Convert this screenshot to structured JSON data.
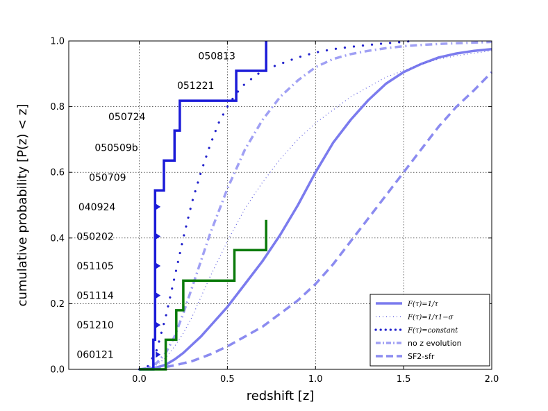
{
  "chart_data": {
    "type": "line",
    "xlabel": "redshift [z]",
    "ylabel": "cumulative probability [P(z) < z]",
    "xlim": [
      -0.4,
      2.0
    ],
    "ylim": [
      0.0,
      1.0
    ],
    "grid": true,
    "x_ticks": [
      0.0,
      0.5,
      1.0,
      1.5,
      2.0
    ],
    "x_tick_labels": [
      "0.0",
      "0.5",
      "1.0",
      "1.5",
      "2.0"
    ],
    "y_ticks": [
      0.0,
      0.2,
      0.4,
      0.6,
      0.8,
      1.0
    ],
    "y_tick_labels": [
      "0.0",
      "0.2",
      "0.4",
      "0.6",
      "0.8",
      "1.0"
    ],
    "legend_position": "bottom-right",
    "series": [
      {
        "name": "F(τ)=1/τ",
        "style": "solid",
        "color": "#7b7bee",
        "x": [
          0.0,
          0.05,
          0.1,
          0.15,
          0.2,
          0.25,
          0.3,
          0.35,
          0.4,
          0.5,
          0.6,
          0.7,
          0.8,
          0.9,
          1.0,
          1.1,
          1.2,
          1.3,
          1.4,
          1.5,
          1.6,
          1.7,
          1.8,
          1.9,
          2.0
        ],
        "y": [
          0.0,
          0.002,
          0.006,
          0.014,
          0.03,
          0.05,
          0.075,
          0.1,
          0.13,
          0.19,
          0.26,
          0.33,
          0.41,
          0.5,
          0.6,
          0.69,
          0.76,
          0.82,
          0.87,
          0.905,
          0.93,
          0.95,
          0.962,
          0.97,
          0.975
        ]
      },
      {
        "name": "F(τ)=1/τ1−σ",
        "style": "dotted",
        "color": "#5555dd",
        "x": [
          0.0,
          0.05,
          0.1,
          0.15,
          0.2,
          0.25,
          0.3,
          0.35,
          0.4,
          0.5,
          0.6,
          0.7,
          0.8,
          0.9,
          1.0,
          1.1,
          1.2,
          1.3,
          1.4,
          1.5,
          1.6,
          1.7,
          1.8,
          1.9,
          2.0
        ],
        "y": [
          0.0,
          0.004,
          0.014,
          0.035,
          0.07,
          0.11,
          0.16,
          0.22,
          0.28,
          0.39,
          0.49,
          0.57,
          0.64,
          0.7,
          0.75,
          0.79,
          0.83,
          0.86,
          0.89,
          0.91,
          0.93,
          0.945,
          0.955,
          0.963,
          0.97
        ]
      },
      {
        "name": "F(τ)=constant",
        "style": "dotted-bold",
        "color": "#2222cc",
        "x": [
          0.0,
          0.05,
          0.1,
          0.15,
          0.2,
          0.25,
          0.3,
          0.35,
          0.4,
          0.45,
          0.5,
          0.55,
          0.6,
          0.7,
          0.8,
          0.9,
          1.0,
          1.1,
          1.2,
          1.3,
          1.4,
          1.5,
          1.55
        ],
        "y": [
          0.0,
          0.01,
          0.06,
          0.16,
          0.28,
          0.4,
          0.51,
          0.6,
          0.68,
          0.75,
          0.8,
          0.84,
          0.87,
          0.91,
          0.93,
          0.95,
          0.965,
          0.975,
          0.982,
          0.988,
          0.993,
          0.997,
          1.0
        ]
      },
      {
        "name": "no z evolution",
        "style": "dashdot",
        "color": "#a0a0f4",
        "x": [
          0.0,
          0.05,
          0.1,
          0.15,
          0.2,
          0.25,
          0.3,
          0.35,
          0.4,
          0.5,
          0.6,
          0.7,
          0.8,
          0.9,
          1.0,
          1.1,
          1.2,
          1.3,
          1.4,
          1.5,
          1.6,
          1.7,
          1.8,
          1.9,
          2.0
        ],
        "y": [
          0.0,
          0.004,
          0.02,
          0.05,
          0.1,
          0.17,
          0.25,
          0.33,
          0.41,
          0.55,
          0.67,
          0.76,
          0.83,
          0.88,
          0.92,
          0.945,
          0.96,
          0.97,
          0.978,
          0.984,
          0.988,
          0.991,
          0.993,
          0.995,
          0.997
        ]
      },
      {
        "name": "SF2-sfr",
        "style": "dashed",
        "color": "#8b8bf0",
        "x": [
          0.0,
          0.1,
          0.2,
          0.3,
          0.4,
          0.5,
          0.6,
          0.7,
          0.8,
          0.9,
          1.0,
          1.1,
          1.2,
          1.3,
          1.4,
          1.5,
          1.6,
          1.7,
          1.8,
          1.9,
          2.0
        ],
        "y": [
          0.0,
          0.003,
          0.012,
          0.025,
          0.045,
          0.07,
          0.1,
          0.13,
          0.17,
          0.21,
          0.26,
          0.32,
          0.39,
          0.46,
          0.53,
          0.6,
          0.67,
          0.74,
          0.8,
          0.85,
          0.905
        ]
      }
    ],
    "step_series": [
      {
        "name": "blue-step",
        "color": "#1b1bd8",
        "x": [
          0.0,
          0.08,
          0.08,
          0.09,
          0.09,
          0.14,
          0.14,
          0.2,
          0.2,
          0.23,
          0.23,
          0.26,
          0.26,
          0.55,
          0.55,
          0.72,
          0.72
        ],
        "y": [
          0.0,
          0.0,
          0.09,
          0.09,
          0.545,
          0.545,
          0.636,
          0.636,
          0.727,
          0.727,
          0.818,
          0.818,
          0.818,
          0.818,
          0.909,
          0.909,
          1.0
        ]
      },
      {
        "name": "green-step",
        "color": "#0a7a0a",
        "x": [
          0.0,
          0.15,
          0.15,
          0.21,
          0.21,
          0.23,
          0.23,
          0.25,
          0.25,
          0.54,
          0.54,
          0.72,
          0.72
        ],
        "y": [
          0.0,
          0.0,
          0.09,
          0.09,
          0.18,
          0.18,
          0.18,
          0.18,
          0.27,
          0.27,
          0.363,
          0.363,
          0.455
        ]
      }
    ],
    "grb_labels": [
      {
        "text": "050813",
        "x": 0.44,
        "y": 0.955
      },
      {
        "text": "051221",
        "x": 0.32,
        "y": 0.865
      },
      {
        "text": "050724",
        "x": -0.07,
        "y": 0.77
      },
      {
        "text": "050509b",
        "x": -0.13,
        "y": 0.675
      },
      {
        "text": "050709",
        "x": -0.18,
        "y": 0.585
      },
      {
        "text": "040924",
        "x": -0.24,
        "y": 0.495
      },
      {
        "text": "050202",
        "x": -0.25,
        "y": 0.405
      },
      {
        "text": "051105",
        "x": -0.25,
        "y": 0.315
      },
      {
        "text": "051114",
        "x": -0.25,
        "y": 0.225
      },
      {
        "text": "051210",
        "x": -0.25,
        "y": 0.135
      },
      {
        "text": "060121",
        "x": -0.25,
        "y": 0.045
      }
    ],
    "arrow_markers": [
      {
        "x": 0.105,
        "y": 0.495
      },
      {
        "x": 0.105,
        "y": 0.405
      },
      {
        "x": 0.105,
        "y": 0.315
      },
      {
        "x": 0.105,
        "y": 0.225
      },
      {
        "x": 0.105,
        "y": 0.135
      },
      {
        "x": 0.105,
        "y": 0.045
      }
    ],
    "legend": [
      {
        "label_main": "F(τ)=1/τ",
        "style": "solid",
        "math": true
      },
      {
        "label_main": "F(τ)=1/τ1−σ",
        "style": "dotted",
        "math": true
      },
      {
        "label_main": "F(τ)=constant",
        "style": "dotted-bold",
        "math": true
      },
      {
        "label_main": "no z evolution",
        "style": "dashdot",
        "math": false
      },
      {
        "label_main": "SF2-sfr",
        "style": "dashed",
        "math": false
      }
    ]
  }
}
